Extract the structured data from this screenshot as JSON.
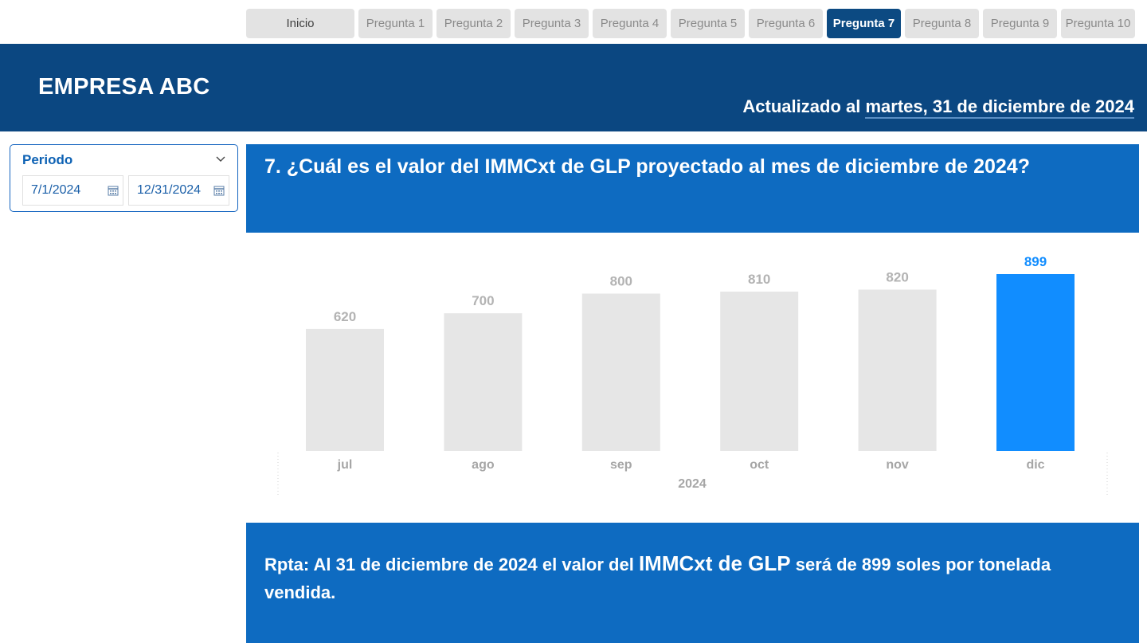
{
  "nav": {
    "home": "Inicio",
    "items": [
      "Pregunta 1",
      "Pregunta 2",
      "Pregunta 3",
      "Pregunta 4",
      "Pregunta 5",
      "Pregunta 6",
      "Pregunta 7",
      "Pregunta 8",
      "Pregunta 9",
      "Pregunta 10"
    ],
    "active_index": 6
  },
  "header": {
    "brand": "EMPRESA ABC",
    "updated_prefix": "Actualizado al ",
    "updated_date": "martes, 31 de diciembre de 2024"
  },
  "slicer": {
    "title": "Periodo",
    "start_date": "7/1/2024",
    "end_date": "12/31/2024",
    "chevron_icon": "chevron-down-icon",
    "calendar_icon": "calendar-icon"
  },
  "question": {
    "text": "7. ¿Cuál es el valor del IMMCxt de GLP proyectado al mes de diciembre de 2024?"
  },
  "answer": {
    "part1": "Rpta: Al 31 de diciembre de 2024 el valor del ",
    "emph": "IMMCxt de GLP",
    "part2": " será de 899 soles por tonelada vendida."
  },
  "colors": {
    "header_bg": "#0b4781",
    "banner_bg": "#0e6bc1",
    "active_tab": "#0c4a82",
    "bar_default": "#e6e6e6",
    "bar_highlight": "#118dff",
    "label_default": "#b3b3b3",
    "label_highlight": "#118dff"
  },
  "chart_data": {
    "type": "bar",
    "categories": [
      "jul",
      "ago",
      "sep",
      "oct",
      "nov",
      "dic"
    ],
    "values": [
      620,
      700,
      800,
      810,
      820,
      899
    ],
    "x_group_label": "2024",
    "highlight_index": 5,
    "ylim": [
      0,
      899
    ]
  }
}
